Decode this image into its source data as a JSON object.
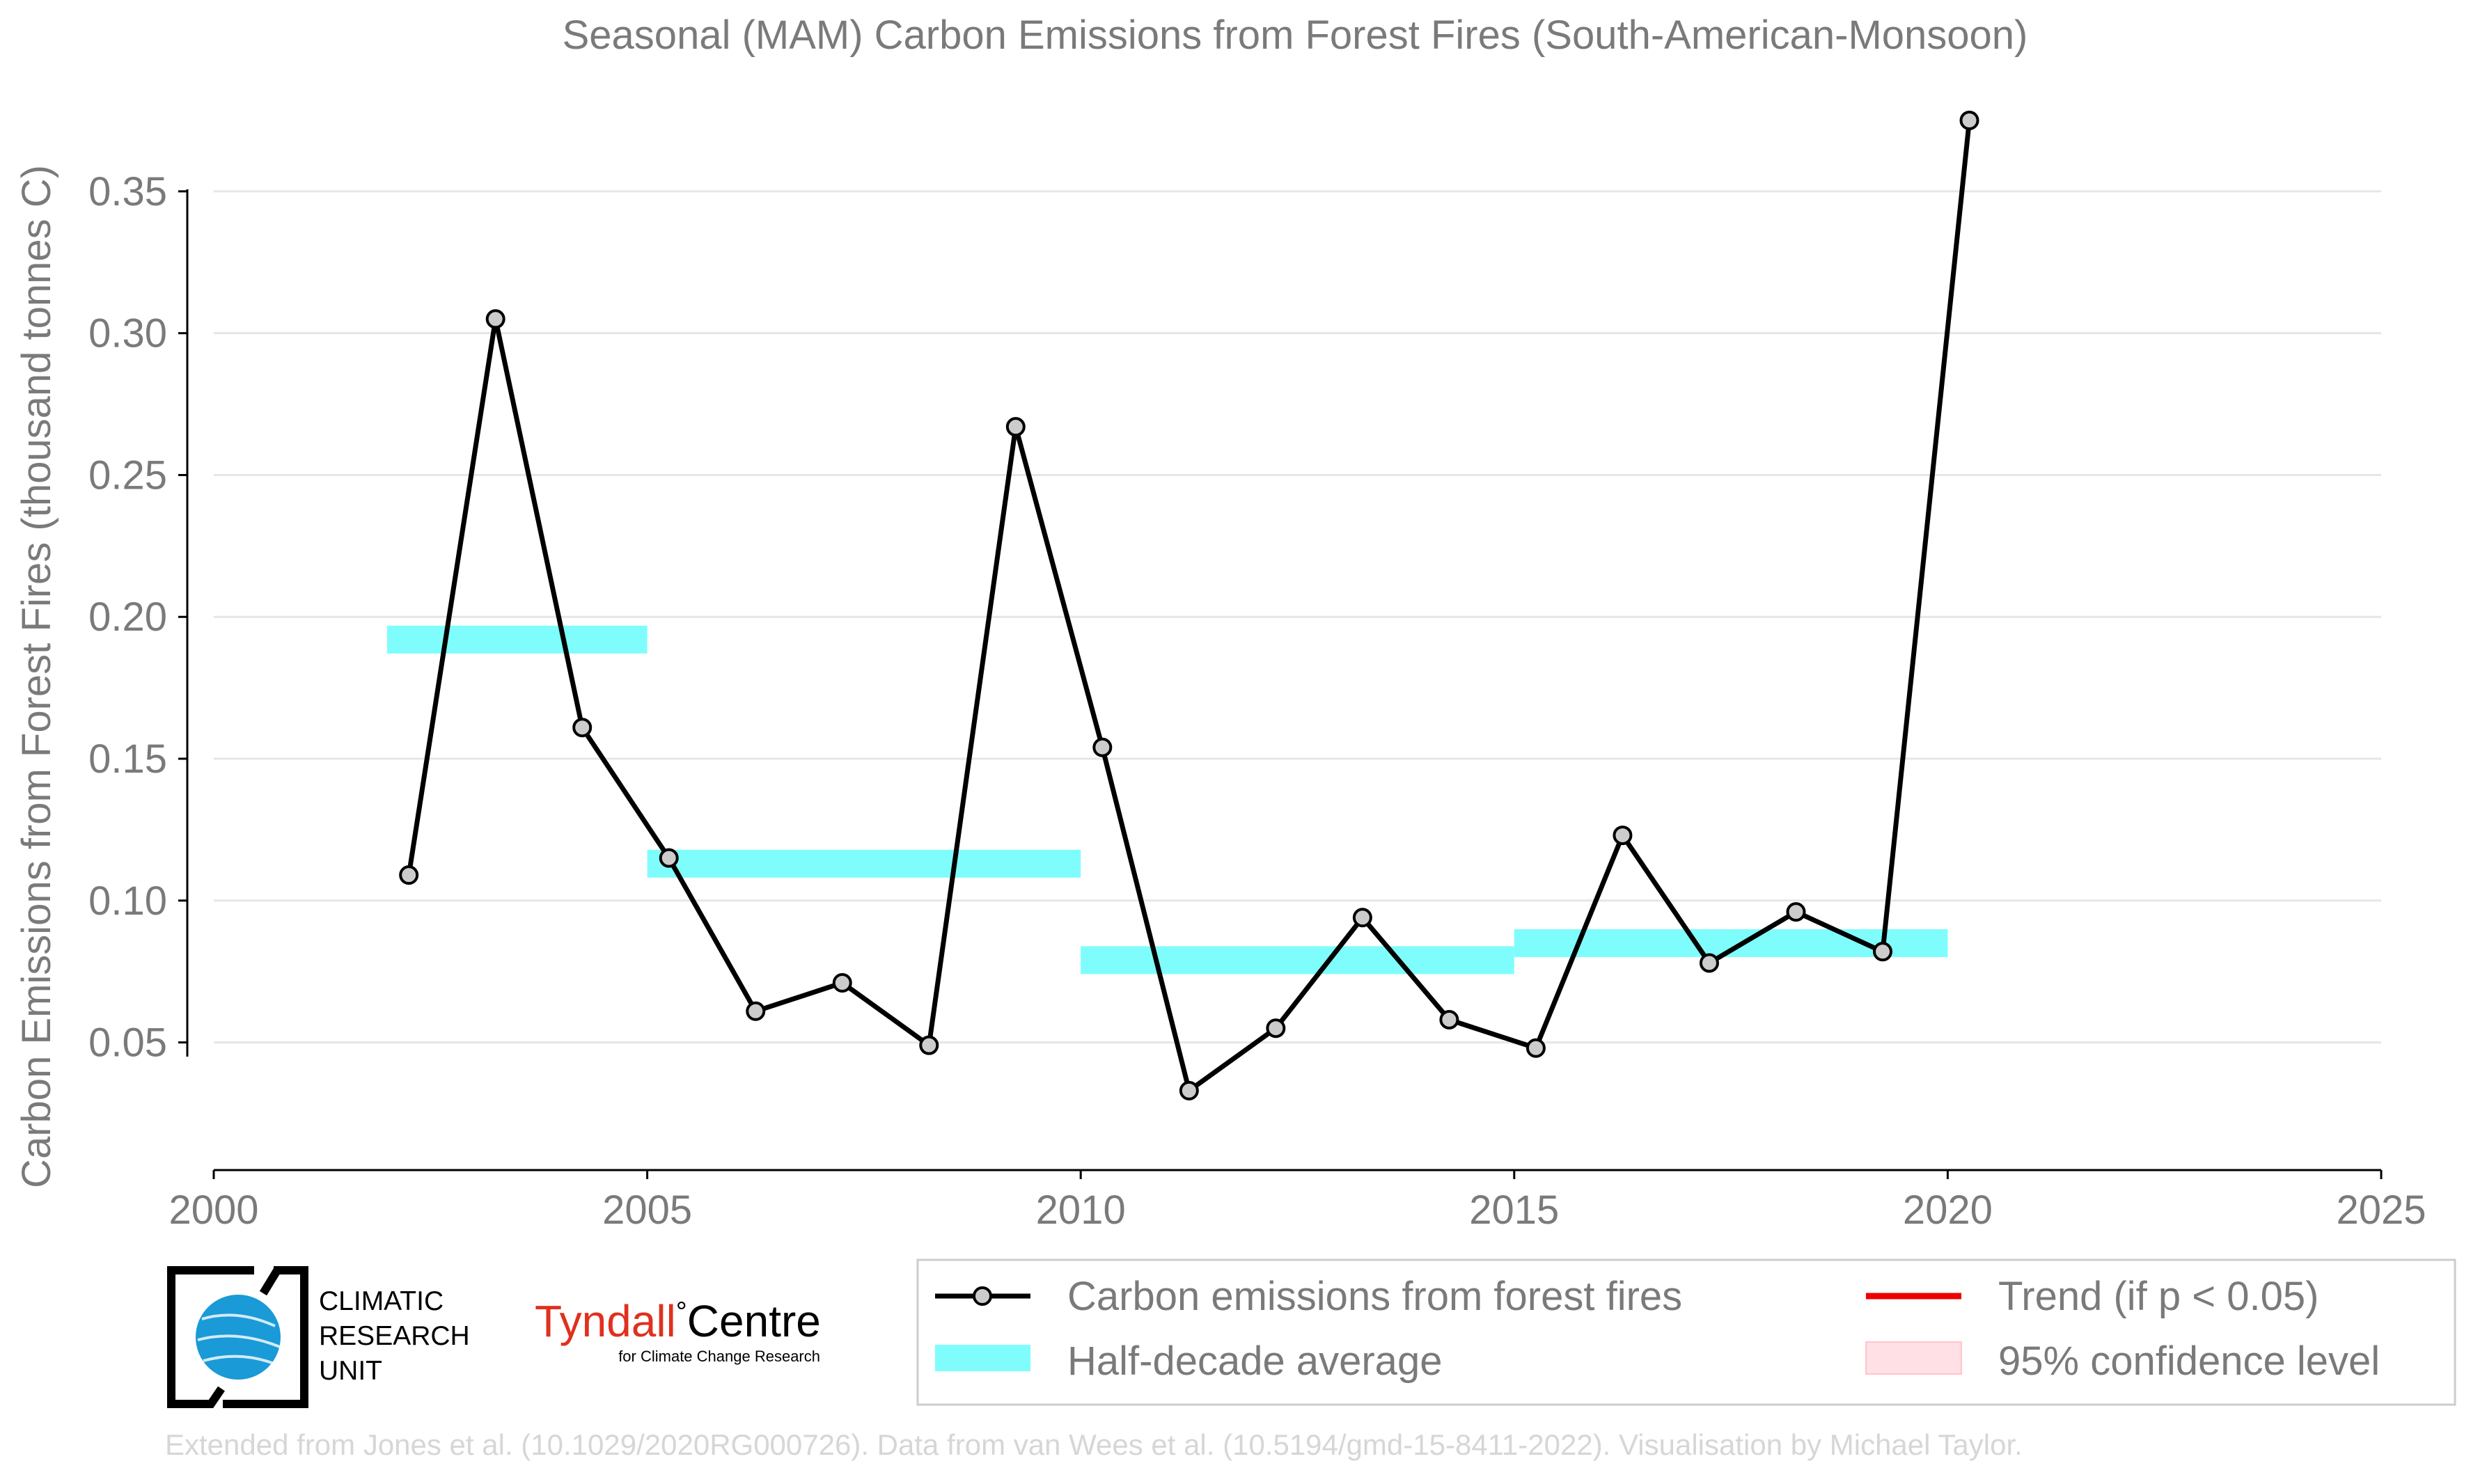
{
  "chart_data": {
    "type": "line",
    "title": "Seasonal (MAM) Carbon Emissions from Forest Fires (South-American-Monsoon)",
    "xlabel": "",
    "ylabel": "Carbon Emissions from Forest Fires (thousand tonnes C)",
    "xlim": [
      2000,
      2025
    ],
    "ylim": [
      0.005,
      0.375
    ],
    "x_ticks": [
      2000,
      2005,
      2010,
      2015,
      2020,
      2025
    ],
    "x_tick_labels": [
      "2000",
      "2005",
      "2010",
      "2015",
      "2020",
      "2025"
    ],
    "y_ticks": [
      0.05,
      0.1,
      0.15,
      0.2,
      0.25,
      0.3,
      0.35
    ],
    "y_tick_labels": [
      "0.05",
      "0.10",
      "0.15",
      "0.20",
      "0.25",
      "0.30",
      "0.35"
    ],
    "grid": "horizontal",
    "legend_position": "bottom",
    "series": [
      {
        "name": "Carbon emissions from forest fires",
        "color": "#000000",
        "marker_fill": "#cccccc",
        "x": [
          2002.25,
          2003.25,
          2004.25,
          2005.25,
          2006.25,
          2007.25,
          2008.25,
          2009.25,
          2010.25,
          2011.25,
          2012.25,
          2013.25,
          2014.25,
          2015.25,
          2016.25,
          2017.25,
          2018.25,
          2019.25,
          2020.25
        ],
        "values": [
          0.109,
          0.305,
          0.161,
          0.115,
          0.061,
          0.071,
          0.049,
          0.267,
          0.154,
          0.033,
          0.055,
          0.094,
          0.058,
          0.048,
          0.123,
          0.078,
          0.096,
          0.082,
          0.375
        ]
      },
      {
        "name": "Half-decade average",
        "color": "#7ffdfd",
        "segments": [
          {
            "x_start": 2002,
            "x_end": 2005,
            "value": 0.192
          },
          {
            "x_start": 2005,
            "x_end": 2010,
            "value": 0.113
          },
          {
            "x_start": 2010,
            "x_end": 2015,
            "value": 0.079
          },
          {
            "x_start": 2015,
            "x_end": 2020,
            "value": 0.085
          }
        ]
      }
    ],
    "legend": [
      {
        "label": "Carbon emissions from forest fires",
        "symbol": "line-marker",
        "color": "#000000"
      },
      {
        "label": "Trend (if p < 0.05)",
        "symbol": "line",
        "color": "#ee0000"
      },
      {
        "label": "Half-decade average",
        "symbol": "band",
        "color": "#7ffdfd"
      },
      {
        "label": "95% confidence level",
        "symbol": "patch",
        "color": "#ffe0e4"
      }
    ]
  },
  "logos": {
    "cru_line1": "CLIMATIC",
    "cru_line2": "RESEARCH",
    "cru_line3": "UNIT",
    "tyndall_name": "Tyndall",
    "tyndall_degree": "°",
    "tyndall_centre": "Centre",
    "tyndall_subtitle": "for Climate Change Research",
    "tyndall_color": "#e0301e"
  },
  "footer": {
    "source": "Extended from Jones et al. (10.1029/2020RG000726). Data from van Wees et al. (10.5194/gmd-15-8411-2022). Visualisation by Michael Taylor."
  }
}
